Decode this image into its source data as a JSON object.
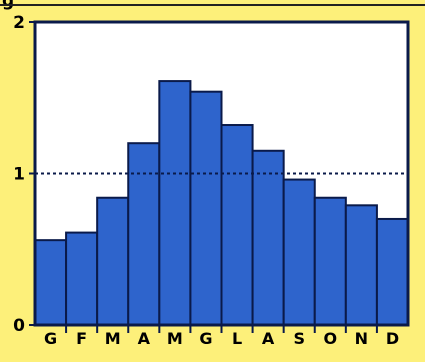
{
  "chart_data": {
    "type": "bar",
    "categories": [
      "G",
      "F",
      "M",
      "A",
      "M",
      "G",
      "L",
      "A",
      "S",
      "O",
      "N",
      "D"
    ],
    "values": [
      0.56,
      0.61,
      0.84,
      1.2,
      1.61,
      1.54,
      1.32,
      1.15,
      0.96,
      0.84,
      0.79,
      0.7
    ],
    "title": "",
    "xlabel": "",
    "ylabel": "",
    "ylim": [
      0,
      2
    ],
    "yticks": [
      "0",
      "1",
      "2"
    ],
    "reference_line": 1,
    "grid": false,
    "colors": {
      "bar": "#2e64cc",
      "bar_stroke": "#0a1a4a",
      "plot_bg": "#ffffff",
      "page_bg": "#fdf07a",
      "axis": "#0a1a4a"
    }
  }
}
